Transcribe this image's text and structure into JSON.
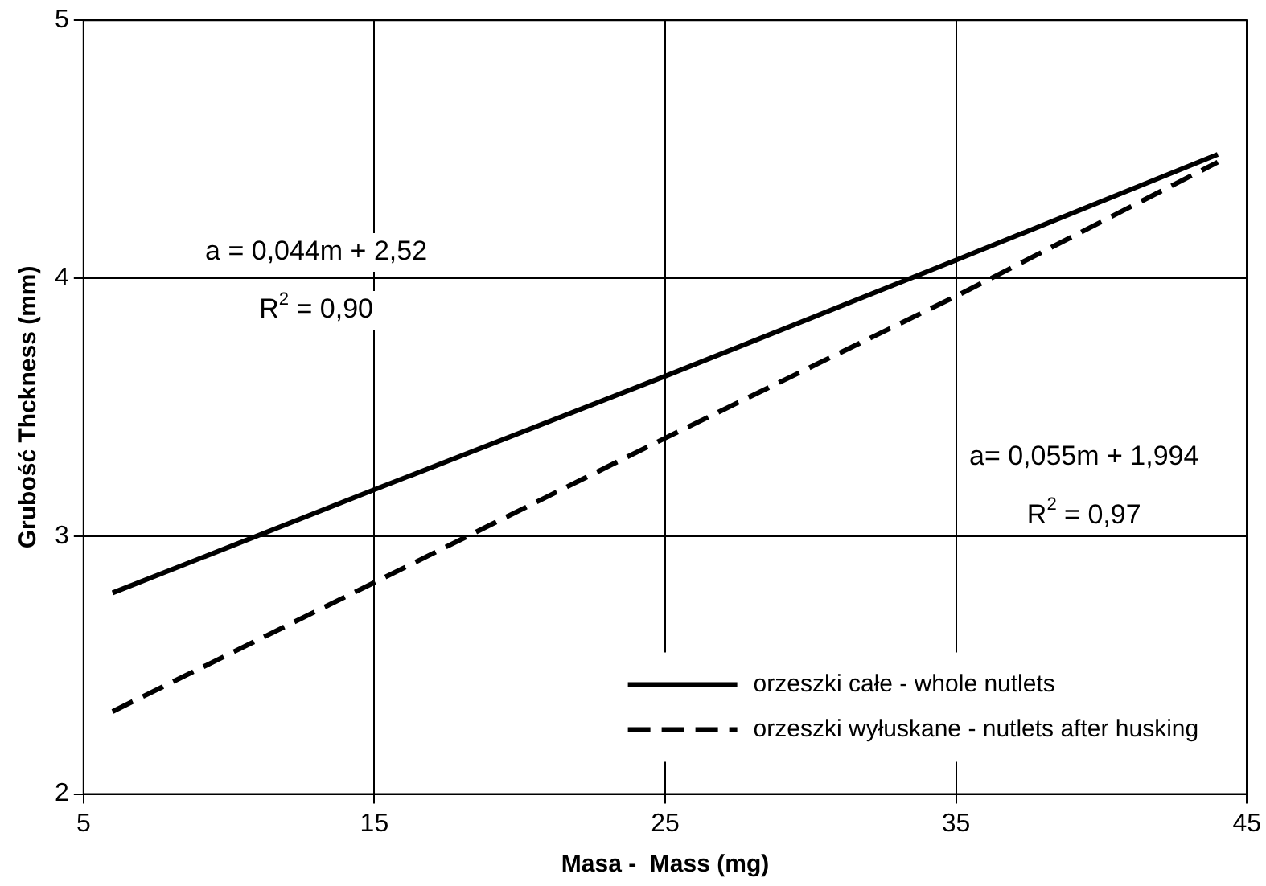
{
  "chart_data": {
    "type": "line",
    "xlabel": "Masa -  Mass (mg)",
    "ylabel": "Grubość Thckness (mm)",
    "xlim": [
      5,
      45
    ],
    "xticks": [
      5,
      15,
      25,
      35,
      45
    ],
    "ylim": [
      2,
      5
    ],
    "yticks": [
      2,
      3,
      4,
      5
    ],
    "grid": true,
    "legend": "bottom right",
    "marker": "none",
    "series": [
      {
        "name": "orzeszki całe - whole nutlets",
        "color": "#000000",
        "line_style": "solid",
        "x": [
          6,
          15,
          25,
          35,
          44
        ],
        "values": [
          2.78,
          3.18,
          3.62,
          4.07,
          4.48
        ]
      },
      {
        "name": "orzeszki wyłuskane - nutlets after husking",
        "color": "#000000",
        "line_style": "dashed",
        "x": [
          6,
          15,
          25,
          35,
          44
        ],
        "values": [
          2.32,
          2.82,
          3.38,
          3.93,
          4.45
        ]
      }
    ],
    "annotations": [
      "a = 0,044m + 2,52",
      "R$^{2}$ = 0,90",
      "a= 0,055m + 1,994",
      "R$^{2}$ = 0,97"
    ]
  }
}
